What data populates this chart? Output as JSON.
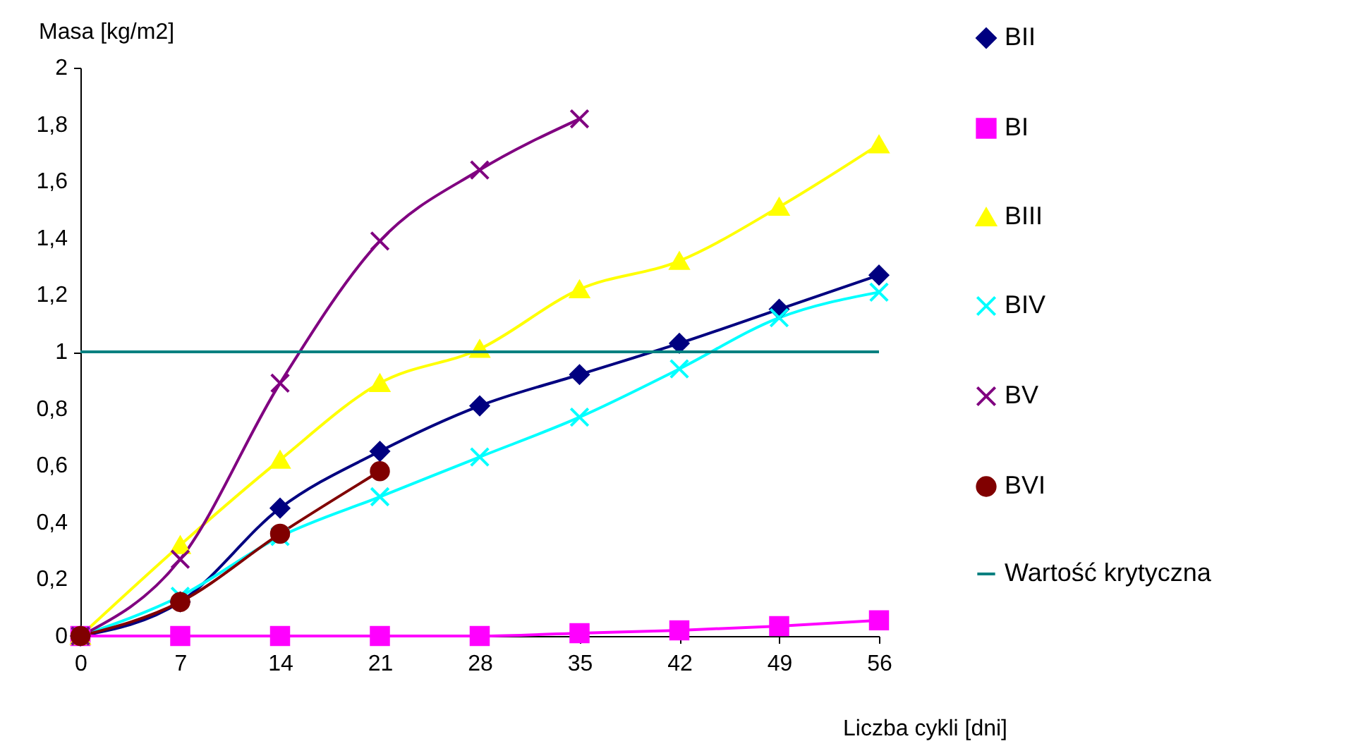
{
  "chart_data": {
    "type": "line",
    "xlabel": "Liczba cykli [dni]",
    "ylabel": "Masa [kg/m2]",
    "x": [
      0,
      7,
      14,
      21,
      28,
      35,
      42,
      49,
      56
    ],
    "xlim": [
      0,
      56
    ],
    "xticks": [
      0,
      7,
      14,
      21,
      28,
      35,
      42,
      49,
      56
    ],
    "ylim": [
      0,
      2
    ],
    "yticks": [
      0,
      {
        "value": 0.2,
        "label": "0,2"
      },
      {
        "value": 0.4,
        "label": "0,4"
      },
      {
        "value": 0.6,
        "label": "0,6"
      },
      {
        "value": 0.8,
        "label": "0,8"
      },
      1,
      {
        "value": 1.2,
        "label": "1,2"
      },
      {
        "value": 1.4,
        "label": "1,4"
      },
      {
        "value": 1.6,
        "label": "1,6"
      },
      {
        "value": 1.8,
        "label": "1,8"
      },
      2
    ],
    "grid": false,
    "legend": "right",
    "series": [
      {
        "name": "BII",
        "color": "#000080",
        "marker": "diamond",
        "values": [
          0,
          0.12,
          0.45,
          0.65,
          0.81,
          0.92,
          1.03,
          1.15,
          1.27
        ]
      },
      {
        "name": "BI",
        "color": "#ff00ff",
        "marker": "square",
        "values": [
          0,
          0,
          0,
          0,
          0,
          0.01,
          0.02,
          0.035,
          0.055
        ]
      },
      {
        "name": "BIII",
        "color": "#ffff00",
        "marker": "triangle",
        "values": [
          0,
          0.32,
          0.62,
          0.89,
          1.01,
          1.22,
          1.32,
          1.51,
          1.73
        ]
      },
      {
        "name": "BIV",
        "color": "#00ffff",
        "marker": "cross",
        "values": [
          0,
          0.14,
          0.35,
          0.49,
          0.63,
          0.77,
          0.94,
          1.12,
          1.21
        ]
      },
      {
        "name": "BV",
        "color": "#800080",
        "marker": "cross",
        "values": [
          0,
          0.27,
          0.89,
          1.39,
          1.64,
          1.82,
          null,
          null,
          null
        ]
      },
      {
        "name": "BVI",
        "color": "#800000",
        "marker": "circle",
        "values": [
          0,
          0.12,
          0.36,
          0.58,
          null,
          null,
          null,
          null,
          null
        ]
      }
    ],
    "ref_lines": [
      {
        "axis": "y",
        "value": 1,
        "label": "Wartość krytyczna",
        "color": "#008080"
      }
    ]
  }
}
